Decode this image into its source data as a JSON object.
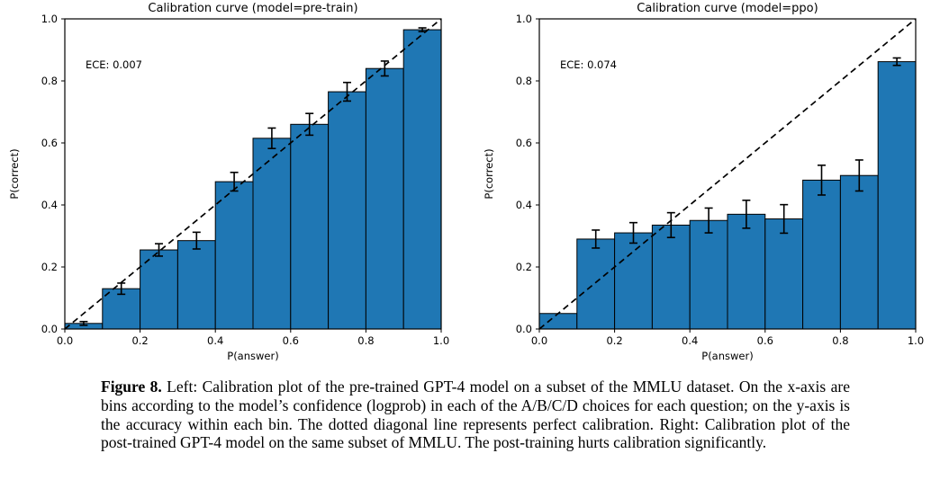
{
  "caption": {
    "label": "Figure 8.",
    "text": " Left: Calibration plot of the pre-trained GPT-4 model on a subset of the MMLU dataset. On the x-axis are bins according to the model’s confidence (logprob) in each of the A/B/C/D choices for each question; on the y-axis is the accuracy within each bin. The dotted diagonal line represents perfect calibration. Right: Calibration plot of the post-trained GPT-4 model on the same subset of MMLU. The post-training hurts calibration significantly."
  },
  "chart_data": [
    {
      "type": "bar",
      "title": "Calibration curve (model=pre-train)",
      "annotation": "ECE: 0.007",
      "xlabel": "P(answer)",
      "ylabel": "P(correct)",
      "xlim": [
        0.0,
        1.0
      ],
      "ylim": [
        0.0,
        1.0
      ],
      "xticks": [
        0.0,
        0.2,
        0.4,
        0.6,
        0.8,
        1.0
      ],
      "yticks": [
        0.0,
        0.2,
        0.4,
        0.6,
        0.8,
        1.0
      ],
      "bin_edges": [
        0.0,
        0.1,
        0.2,
        0.3,
        0.4,
        0.5,
        0.6,
        0.7,
        0.8,
        0.9,
        1.0
      ],
      "values": [
        0.018,
        0.13,
        0.255,
        0.285,
        0.475,
        0.615,
        0.66,
        0.765,
        0.84,
        0.965
      ],
      "errors": [
        0.006,
        0.018,
        0.02,
        0.027,
        0.03,
        0.033,
        0.035,
        0.03,
        0.024,
        0.006
      ],
      "diagonal": true,
      "grid": false,
      "bar_color": "#1f77b4",
      "bar_edge_color": "#000000",
      "diagonal_color": "#000000",
      "error_color": "#000000"
    },
    {
      "type": "bar",
      "title": "Calibration curve (model=ppo)",
      "annotation": "ECE: 0.074",
      "xlabel": "P(answer)",
      "ylabel": "P(correct)",
      "xlim": [
        0.0,
        1.0
      ],
      "ylim": [
        0.0,
        1.0
      ],
      "xticks": [
        0.0,
        0.2,
        0.4,
        0.6,
        0.8,
        1.0
      ],
      "yticks": [
        0.0,
        0.2,
        0.4,
        0.6,
        0.8,
        1.0
      ],
      "bin_edges": [
        0.0,
        0.1,
        0.2,
        0.3,
        0.4,
        0.5,
        0.6,
        0.7,
        0.8,
        0.9,
        1.0
      ],
      "values": [
        0.05,
        0.29,
        0.31,
        0.335,
        0.35,
        0.37,
        0.355,
        0.48,
        0.495,
        0.862
      ],
      "errors": [
        0.0,
        0.029,
        0.033,
        0.04,
        0.04,
        0.045,
        0.046,
        0.048,
        0.05,
        0.012
      ],
      "diagonal": true,
      "grid": false,
      "bar_color": "#1f77b4",
      "bar_edge_color": "#000000",
      "diagonal_color": "#000000",
      "error_color": "#000000"
    }
  ]
}
